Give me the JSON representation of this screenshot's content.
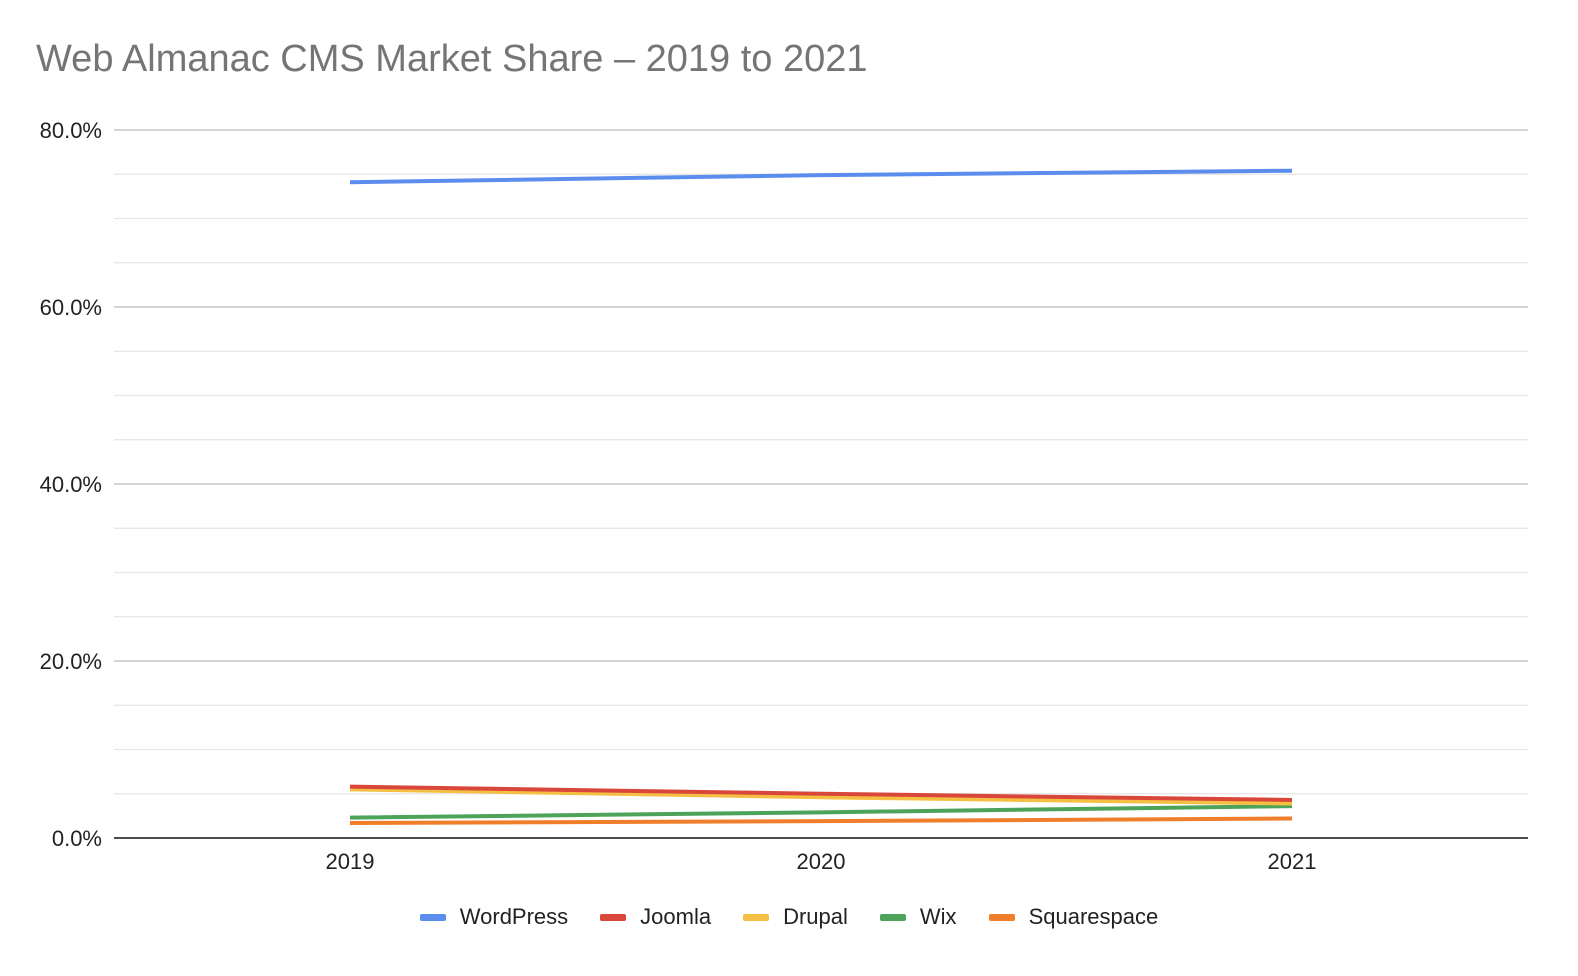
{
  "chart_data": {
    "type": "line",
    "title": "Web Almanac CMS Market Share – 2019 to 2021",
    "xlabel": "",
    "ylabel": "",
    "categories": [
      "2019",
      "2020",
      "2021"
    ],
    "ylim": [
      0,
      80
    ],
    "y_ticks": [
      0,
      20,
      40,
      60,
      80
    ],
    "y_tick_labels": [
      "0.0%",
      "20.0%",
      "40.0%",
      "60.0%",
      "80.0%"
    ],
    "minor_gridlines_per_major": 3,
    "grid": true,
    "legend_position": "bottom",
    "series": [
      {
        "name": "WordPress",
        "color": "#5b8def",
        "values": [
          74.1,
          74.9,
          75.4
        ]
      },
      {
        "name": "Joomla",
        "color": "#d9473a",
        "values": [
          5.8,
          5.0,
          4.3
        ]
      },
      {
        "name": "Drupal",
        "color": "#f4bf42",
        "values": [
          5.5,
          4.6,
          3.9
        ]
      },
      {
        "name": "Wix",
        "color": "#4ea35a",
        "values": [
          2.3,
          2.9,
          3.6
        ]
      },
      {
        "name": "Squarespace",
        "color": "#f07d2a",
        "values": [
          1.7,
          1.9,
          2.2
        ]
      }
    ]
  }
}
